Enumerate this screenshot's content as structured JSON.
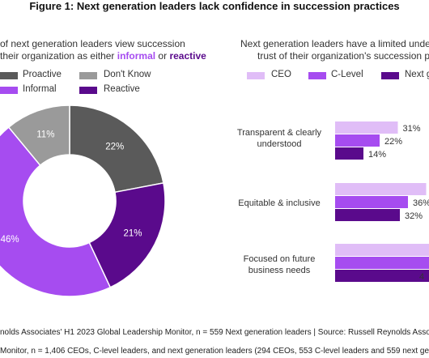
{
  "figure_title": "Figure 1: Next generation leaders lack confidence in succession practices",
  "left": {
    "subtitle_line1": "of next generation leaders view succession",
    "subtitle_line2_pre": "their organization as either ",
    "subtitle_informal": "informal",
    "subtitle_or": " or ",
    "subtitle_reactive": "reactive"
  },
  "right": {
    "subtitle_line1": "Next generation leaders have a limited unders",
    "subtitle_line2": "trust of their organization's succession pr"
  },
  "footnotes": {
    "line1": "nolds Associates' H1 2023 Global Leadership Monitor, n = 559 Next generation leaders | Source: Russell Reynolds Associa",
    "line2": "Monitor, n = 1,406 CEOs, C-level leaders, and next generation leaders (294 CEOs, 553 C-level leaders and 559 next gener"
  },
  "colors": {
    "proactive": "#5a5a5a",
    "dont_know": "#9a9a9a",
    "informal": "#a64cf0",
    "reactive": "#5a0a8c",
    "ceo": "#e0bdf7",
    "c_level": "#a64cf0",
    "next_gen": "#5a0a8c"
  },
  "chart_data": [
    {
      "type": "pie",
      "donut": true,
      "legend": [
        "Proactive",
        "Don't Know",
        "Informal",
        "Reactive"
      ],
      "slices": [
        {
          "name": "Proactive",
          "value": 22,
          "label": "22%",
          "color": "#5a5a5a"
        },
        {
          "name": "Reactive",
          "value": 21,
          "label": "21%",
          "color": "#5a0a8c"
        },
        {
          "name": "Informal",
          "value": 46,
          "label": "46%",
          "color": "#a64cf0"
        },
        {
          "name": "Don't Know",
          "value": 11,
          "label": "11%",
          "color": "#9a9a9a"
        }
      ]
    },
    {
      "type": "bar",
      "orientation": "horizontal",
      "categories_lines": [
        [
          "Transparent & clearly",
          "understood"
        ],
        [
          "Equitable & inclusive"
        ],
        [
          "Focused on future",
          "business needs"
        ]
      ],
      "series": [
        {
          "name": "CEO",
          "values": [
            31,
            45,
            49
          ],
          "labels": [
            "31%",
            "",
            ""
          ],
          "color": "#e0bdf7"
        },
        {
          "name": "C-Level",
          "values": [
            22,
            36,
            49
          ],
          "labels": [
            "22%",
            "36%",
            ""
          ],
          "color": "#a64cf0"
        },
        {
          "name": "Next g",
          "values": [
            14,
            32,
            49
          ],
          "labels": [
            "14%",
            "32%",
            "4"
          ],
          "color": "#5a0a8c"
        }
      ],
      "xlim": [
        0,
        50
      ]
    }
  ]
}
